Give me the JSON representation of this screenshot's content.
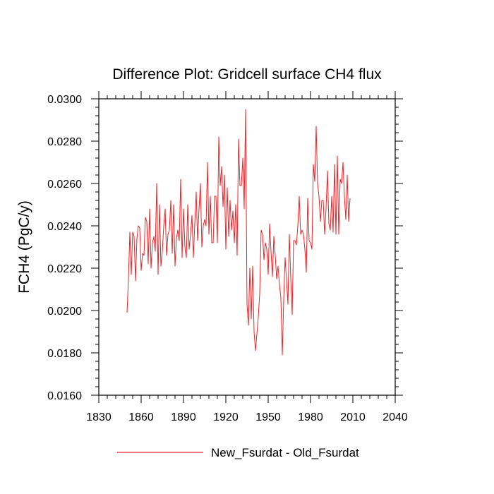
{
  "chart_data": {
    "type": "line",
    "title": "Difference Plot: Gridcell surface CH4 flux",
    "xlabel": "",
    "ylabel": "FCH4  (PgC/y)",
    "xlim": [
      1830,
      2040
    ],
    "ylim": [
      0.016,
      0.03
    ],
    "x_ticks": [
      1830,
      1860,
      1890,
      1920,
      1950,
      1980,
      2010,
      2040
    ],
    "x_tick_labels": [
      "1830",
      "1860",
      "1890",
      "1920",
      "1950",
      "1980",
      "2010",
      "2040"
    ],
    "y_ticks": [
      0.016,
      0.018,
      0.02,
      0.022,
      0.024,
      0.026,
      0.028,
      0.03
    ],
    "y_tick_labels": [
      "0.0160",
      "0.0180",
      "0.0200",
      "0.0220",
      "0.0240",
      "0.0260",
      "0.0280",
      "0.0300"
    ],
    "grid": false,
    "legend_position": "bottom-center",
    "series_color": "#e8262b",
    "series": [
      {
        "name": "New_Fsurdat - Old_Fsurdat",
        "x_start": 1850,
        "x_step": 1,
        "values": [
          0.0199,
          0.0215,
          0.0237,
          0.0217,
          0.0237,
          0.0235,
          0.0214,
          0.0234,
          0.024,
          0.0239,
          0.0219,
          0.0227,
          0.0226,
          0.0244,
          0.0242,
          0.0222,
          0.0248,
          0.022,
          0.0232,
          0.0235,
          0.0228,
          0.026,
          0.0217,
          0.025,
          0.0221,
          0.0228,
          0.024,
          0.0248,
          0.0226,
          0.0236,
          0.0238,
          0.0252,
          0.0227,
          0.025,
          0.0221,
          0.0234,
          0.0238,
          0.0233,
          0.0262,
          0.0225,
          0.0248,
          0.023,
          0.0225,
          0.025,
          0.0229,
          0.0236,
          0.0245,
          0.0225,
          0.0241,
          0.0256,
          0.0233,
          0.0248,
          0.026,
          0.023,
          0.024,
          0.0243,
          0.024,
          0.027,
          0.0236,
          0.0254,
          0.0232,
          0.0232,
          0.0254,
          0.0254,
          0.0232,
          0.0282,
          0.0259,
          0.0268,
          0.0249,
          0.0264,
          0.0229,
          0.0258,
          0.0235,
          0.0252,
          0.0238,
          0.0247,
          0.0232,
          0.025,
          0.0226,
          0.0281,
          0.0259,
          0.0259,
          0.0272,
          0.0248,
          0.0295,
          0.0203,
          0.0193,
          0.022,
          0.0196,
          0.0221,
          0.019,
          0.0181,
          0.0189,
          0.0197,
          0.0208,
          0.0238,
          0.0236,
          0.0224,
          0.0232,
          0.0229,
          0.0217,
          0.0241,
          0.0228,
          0.0216,
          0.0235,
          0.0226,
          0.0215,
          0.0221,
          0.0212,
          0.0206,
          0.0179,
          0.0205,
          0.0225,
          0.0214,
          0.0203,
          0.0236,
          0.0215,
          0.0198,
          0.0233,
          0.0233,
          0.0231,
          0.024,
          0.0254,
          0.0236,
          0.0238,
          0.0236,
          0.0229,
          0.0218,
          0.0253,
          0.0233,
          0.0232,
          0.0229,
          0.0269,
          0.0261,
          0.0287,
          0.026,
          0.0254,
          0.0242,
          0.0252,
          0.0252,
          0.0236,
          0.0248,
          0.0266,
          0.0241,
          0.0238,
          0.0254,
          0.0237,
          0.0269,
          0.0236,
          0.0273,
          0.0236,
          0.0262,
          0.026,
          0.027,
          0.0254,
          0.0243,
          0.0264,
          0.0242,
          0.0253
        ]
      }
    ]
  }
}
